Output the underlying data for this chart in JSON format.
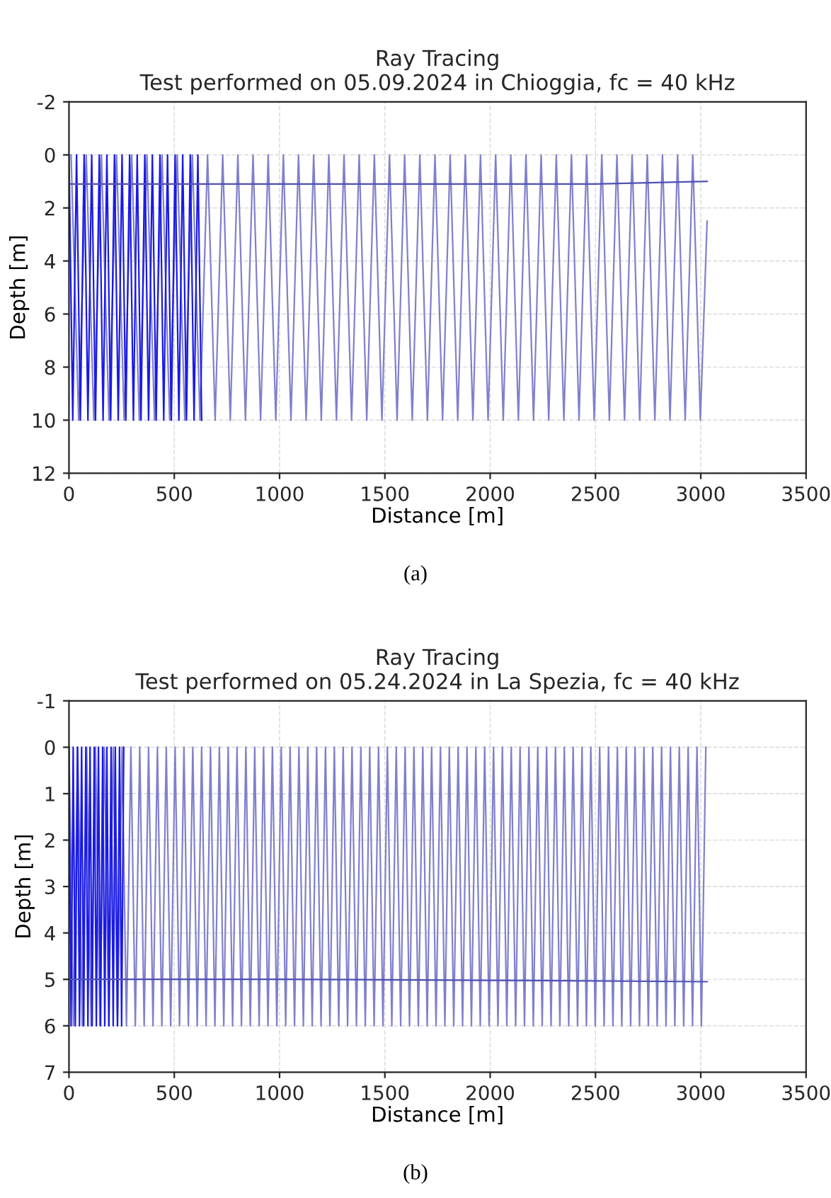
{
  "chart_data": [
    {
      "type": "line",
      "title": "Ray Tracing",
      "subtitle": "Test performed on 05.09.2024 in Chioggia, fc = 40 kHz",
      "xlabel": "Distance [m]",
      "ylabel": "Depth [m]",
      "xlim": [
        0,
        3500
      ],
      "xticks": [
        0,
        500,
        1000,
        1500,
        2000,
        2500,
        3000,
        3500
      ],
      "ylim": [
        12,
        -2
      ],
      "yticks": [
        -2,
        0,
        2,
        4,
        6,
        8,
        10,
        12
      ],
      "grid": true,
      "marker": "none",
      "line_style": "solid",
      "annotations": [
        "(a)"
      ],
      "series": [
        {
          "color": "#8080cc",
          "x": [
            10,
            46,
            82,
            118,
            154,
            190,
            226,
            262,
            298,
            334,
            370,
            406,
            442,
            478,
            514,
            550,
            586,
            622,
            658,
            694,
            730,
            766,
            802,
            838,
            874,
            910,
            946,
            982,
            1018,
            1054,
            1090,
            1126,
            1162,
            1198,
            1234,
            1270,
            1306,
            1342,
            1378,
            1414,
            1450,
            1486,
            1522,
            1558,
            1594,
            1630,
            1666,
            1702,
            1738,
            1774,
            1810,
            1846,
            1882,
            1918,
            1954,
            1990,
            2026,
            2062,
            2098,
            2134,
            2170,
            2206,
            2242,
            2278,
            2314,
            2350,
            2386,
            2422,
            2458,
            2494,
            2530,
            2566,
            2602,
            2638,
            2674,
            2710,
            2746,
            2782,
            2818,
            2854,
            2890,
            2926,
            2962,
            2998,
            3030
          ],
          "values": [
            0,
            10,
            0,
            10,
            0,
            10,
            0,
            10,
            0,
            10,
            0,
            10,
            0,
            10,
            0,
            10,
            0,
            10,
            0,
            10,
            0,
            10,
            0,
            10,
            0,
            10,
            0,
            10,
            0,
            10,
            0,
            10,
            0,
            10,
            0,
            10,
            0,
            10,
            0,
            10,
            0,
            10,
            0,
            10,
            0,
            10,
            0,
            10,
            0,
            10,
            0,
            10,
            0,
            10,
            0,
            10,
            0,
            10,
            0,
            10,
            0,
            10,
            0,
            10,
            0,
            10,
            0,
            10,
            0,
            10,
            0,
            10,
            0,
            10,
            0,
            10,
            0,
            10,
            0,
            10,
            0,
            10,
            0,
            10,
            2.5
          ]
        },
        {
          "color": "#1a1ae6",
          "x": [
            0,
            18,
            36,
            54,
            72,
            90,
            108,
            126,
            144,
            162,
            180,
            198,
            216,
            234,
            252,
            270,
            288,
            306,
            324,
            342,
            360,
            378,
            396,
            414,
            432,
            450,
            468,
            486,
            504,
            522,
            540,
            558,
            576,
            594,
            612,
            630
          ],
          "values": [
            0,
            10,
            0,
            10,
            0,
            10,
            0,
            10,
            0,
            10,
            0,
            10,
            0,
            10,
            0,
            10,
            0,
            10,
            0,
            10,
            0,
            10,
            0,
            10,
            0,
            10,
            0,
            10,
            0,
            10,
            0,
            10,
            0,
            10,
            0,
            10
          ]
        },
        {
          "color": "#5050b4",
          "x": [
            0,
            500,
            1000,
            1500,
            2000,
            2500,
            3030
          ],
          "values": [
            1.1,
            1.1,
            1.1,
            1.1,
            1.1,
            1.1,
            1.0
          ]
        }
      ]
    },
    {
      "type": "line",
      "title": "Ray Tracing",
      "subtitle": "Test performed on 05.24.2024 in La Spezia, fc = 40 kHz",
      "xlabel": "Distance [m]",
      "ylabel": "Depth [m]",
      "xlim": [
        0,
        3500
      ],
      "xticks": [
        0,
        500,
        1000,
        1500,
        2000,
        2500,
        3000,
        3500
      ],
      "ylim": [
        7,
        -1
      ],
      "yticks": [
        -1,
        0,
        1,
        2,
        3,
        4,
        5,
        6,
        7
      ],
      "grid": true,
      "marker": "none",
      "line_style": "solid",
      "annotations": [
        "(b)"
      ],
      "series": [
        {
          "color": "#8080cc",
          "x": [
            0,
            21,
            42,
            63,
            84,
            105,
            126,
            147,
            168,
            189,
            210,
            231,
            252,
            273,
            294,
            315,
            336,
            357,
            378,
            399,
            420,
            441,
            462,
            483,
            504,
            525,
            546,
            567,
            588,
            609,
            630,
            651,
            672,
            693,
            714,
            735,
            756,
            777,
            798,
            819,
            840,
            861,
            882,
            903,
            924,
            945,
            966,
            987,
            1008,
            1029,
            1050,
            1071,
            1092,
            1113,
            1134,
            1155,
            1176,
            1197,
            1218,
            1239,
            1260,
            1281,
            1302,
            1323,
            1344,
            1365,
            1386,
            1407,
            1428,
            1449,
            1470,
            1491,
            1512,
            1533,
            1554,
            1575,
            1596,
            1617,
            1638,
            1659,
            1680,
            1701,
            1722,
            1743,
            1764,
            1785,
            1806,
            1827,
            1848,
            1869,
            1890,
            1911,
            1932,
            1953,
            1974,
            1995,
            2016,
            2037,
            2058,
            2079,
            2100,
            2121,
            2142,
            2163,
            2184,
            2205,
            2226,
            2247,
            2268,
            2289,
            2310,
            2331,
            2352,
            2373,
            2394,
            2415,
            2436,
            2457,
            2478,
            2499,
            2520,
            2541,
            2562,
            2583,
            2604,
            2625,
            2646,
            2667,
            2688,
            2709,
            2730,
            2751,
            2772,
            2793,
            2814,
            2835,
            2856,
            2877,
            2898,
            2919,
            2940,
            2961,
            2982,
            3003,
            3024
          ],
          "values": [
            0,
            6,
            0,
            6,
            0,
            6,
            0,
            6,
            0,
            6,
            0,
            6,
            0,
            6,
            0,
            6,
            0,
            6,
            0,
            6,
            0,
            6,
            0,
            6,
            0,
            6,
            0,
            6,
            0,
            6,
            0,
            6,
            0,
            6,
            0,
            6,
            0,
            6,
            0,
            6,
            0,
            6,
            0,
            6,
            0,
            6,
            0,
            6,
            0,
            6,
            0,
            6,
            0,
            6,
            0,
            6,
            0,
            6,
            0,
            6,
            0,
            6,
            0,
            6,
            0,
            6,
            0,
            6,
            0,
            6,
            0,
            6,
            0,
            6,
            0,
            6,
            0,
            6,
            0,
            6,
            0,
            6,
            0,
            6,
            0,
            6,
            0,
            6,
            0,
            6,
            0,
            6,
            0,
            6,
            0,
            6,
            0,
            6,
            0,
            6,
            0,
            6,
            0,
            6,
            0,
            6,
            0,
            6,
            0,
            6,
            0,
            6,
            0,
            6,
            0,
            6,
            0,
            6,
            0,
            6,
            0,
            6,
            0,
            6,
            0,
            6,
            0,
            6,
            0,
            6,
            0,
            6,
            0,
            6,
            0,
            6,
            0,
            6,
            0,
            6,
            0,
            6,
            0,
            6,
            0
          ]
        },
        {
          "color": "#1a1ae6",
          "x": [
            0,
            10,
            20,
            30,
            40,
            50,
            60,
            70,
            80,
            90,
            100,
            110,
            120,
            130,
            140,
            150,
            160,
            170,
            180,
            190,
            200,
            210,
            220,
            230,
            240,
            250,
            260
          ],
          "values": [
            0,
            6,
            0,
            6,
            0,
            6,
            0,
            6,
            0,
            6,
            0,
            6,
            0,
            6,
            0,
            6,
            0,
            6,
            0,
            6,
            0,
            6,
            0,
            6,
            0,
            6,
            0
          ]
        },
        {
          "color": "#5050b4",
          "x": [
            0,
            1000,
            2000,
            3030
          ],
          "values": [
            5.0,
            5.0,
            5.02,
            5.05
          ]
        }
      ]
    }
  ]
}
